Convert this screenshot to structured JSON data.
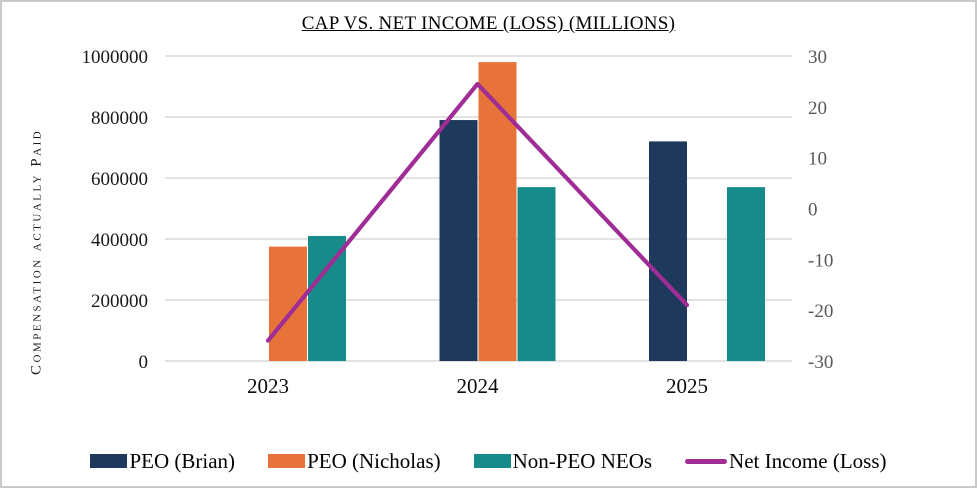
{
  "frame": {
    "background": "#ffffff",
    "border_color": "#c9c9c9"
  },
  "chart_data": {
    "type": "combo-bar-line",
    "title": "CAP VS. NET INCOME (LOSS) (MILLIONS)",
    "categories": [
      "2023",
      "2024",
      "2025"
    ],
    "bar_series": [
      {
        "name": "PEO (Brian)",
        "color": "#1E395C",
        "values": [
          null,
          790000,
          720000
        ]
      },
      {
        "name": "PEO (Nicholas)",
        "color": "#E8733A",
        "values": [
          375000,
          980000,
          null
        ]
      },
      {
        "name": "Non-PEO NEOs",
        "color": "#178A8A",
        "values": [
          410000,
          570000,
          570000
        ]
      }
    ],
    "line_series": {
      "name": "Net Income (Loss)",
      "color": "#A02D96",
      "axis": "right",
      "values": [
        -26,
        24.5,
        -19
      ]
    },
    "left_axis": {
      "title": "Compensation actually Paid",
      "min": 0,
      "max": 1000000,
      "ticks": [
        1000000,
        800000,
        600000,
        400000,
        200000,
        0
      ],
      "label_color": "#1a1a1a"
    },
    "right_axis": {
      "min": -30,
      "max": 30,
      "ticks": [
        30,
        20,
        10,
        0,
        -10,
        -20,
        -30
      ],
      "label_color": "#595959"
    },
    "x_axis": {
      "labels": [
        "2023",
        "2024",
        "2025"
      ],
      "label_color": "#0d0d0d"
    },
    "grid": true,
    "gridline_color": "#D9D9D9",
    "legend": {
      "position": "bottom",
      "items": [
        {
          "label": "PEO (Brian)",
          "swatch": "rect",
          "color": "#1E395C"
        },
        {
          "label": "PEO (Nicholas)",
          "swatch": "rect",
          "color": "#E8733A"
        },
        {
          "label": "Non-PEO NEOs",
          "swatch": "rect",
          "color": "#178A8A"
        },
        {
          "label": "Net Income (Loss)",
          "swatch": "line",
          "color": "#A02D96"
        }
      ]
    }
  }
}
